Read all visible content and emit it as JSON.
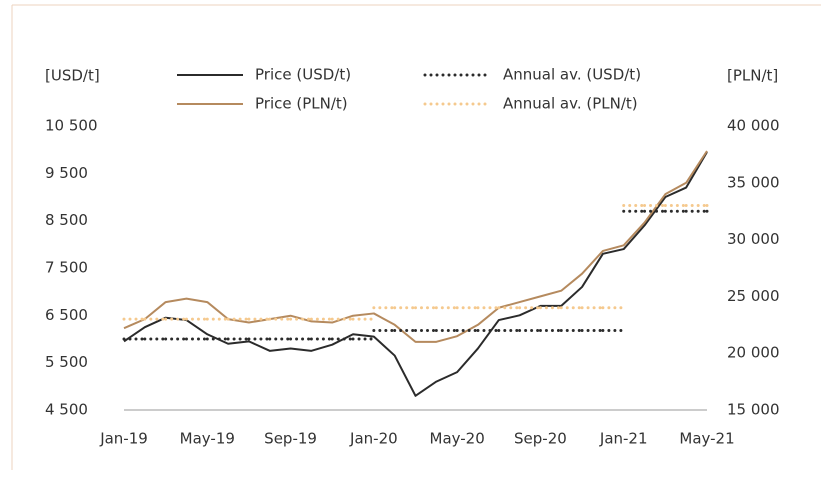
{
  "chart_data": {
    "type": "line",
    "y_axis_label": "[USD/t]",
    "y2_axis_label": "[PLN/t]",
    "categories": [
      "Jan-19",
      null,
      null,
      null,
      "May-19",
      null,
      null,
      null,
      "Sep-19",
      null,
      null,
      null,
      "Jan-20",
      null,
      null,
      null,
      "May-20",
      null,
      null,
      null,
      "Sep-20",
      null,
      null,
      null,
      "Jan-21",
      null,
      null,
      null,
      "May-21"
    ],
    "series": [
      {
        "name": "Price (USD/t)",
        "color": "#2b2b2b",
        "line_style": "solid",
        "axis": "y",
        "values": [
          5950,
          6250,
          6450,
          6400,
          6100,
          5900,
          5950,
          5750,
          5800,
          5750,
          5880,
          6100,
          6050,
          5650,
          4800,
          5100,
          5300,
          5800,
          6400,
          6500,
          6700,
          6700,
          7100,
          7800,
          7900,
          8400,
          9000,
          9200,
          9950
        ]
      },
      {
        "name": "Price (PLN/t)",
        "color": "#b58a5e",
        "line_style": "solid",
        "axis": "y2",
        "values": [
          22200,
          23000,
          24500,
          24800,
          24500,
          23000,
          22700,
          23000,
          23300,
          22800,
          22700,
          23300,
          23500,
          22500,
          21000,
          21000,
          21500,
          22500,
          24000,
          24500,
          25000,
          25500,
          27000,
          29000,
          29500,
          31500,
          34000,
          35000,
          37800
        ]
      },
      {
        "name": "Annual av. (USD/t)",
        "color": "#2b2b2b",
        "line_style": "dotted",
        "axis": "y",
        "values": [
          6000,
          6000,
          6000,
          6000,
          6000,
          6000,
          6000,
          6000,
          6000,
          6000,
          6000,
          6000,
          6180,
          6180,
          6180,
          6180,
          6180,
          6180,
          6180,
          6180,
          6180,
          6180,
          6180,
          6180,
          8700,
          8700,
          8700,
          8700,
          8700
        ]
      },
      {
        "name": "Annual av. (PLN/t)",
        "color": "#f5c98e",
        "line_style": "dotted",
        "axis": "y2",
        "values": [
          23000,
          23000,
          23000,
          23000,
          23000,
          23000,
          23000,
          23000,
          23000,
          23000,
          23000,
          23000,
          24000,
          24000,
          24000,
          24000,
          24000,
          24000,
          24000,
          24000,
          24000,
          24000,
          24000,
          24000,
          33000,
          33000,
          33000,
          33000,
          33000
        ]
      }
    ],
    "ylim": [
      4500,
      10500
    ],
    "yticks": [
      {
        "value": 4500,
        "label": "4 500"
      },
      {
        "value": 5500,
        "label": "5 500"
      },
      {
        "value": 6500,
        "label": "6 500"
      },
      {
        "value": 7500,
        "label": "7 500"
      },
      {
        "value": 8500,
        "label": "8 500"
      },
      {
        "value": 9500,
        "label": "9 500"
      },
      {
        "value": 10500,
        "label": "10 500"
      }
    ],
    "y2lim": [
      15000,
      40000
    ],
    "y2ticks": [
      {
        "value": 15000,
        "label": "15 000"
      },
      {
        "value": 20000,
        "label": "20 000"
      },
      {
        "value": 25000,
        "label": "25 000"
      },
      {
        "value": 30000,
        "label": "30 000"
      },
      {
        "value": 35000,
        "label": "35 000"
      },
      {
        "value": 40000,
        "label": "40 000"
      }
    ],
    "grid": false
  }
}
